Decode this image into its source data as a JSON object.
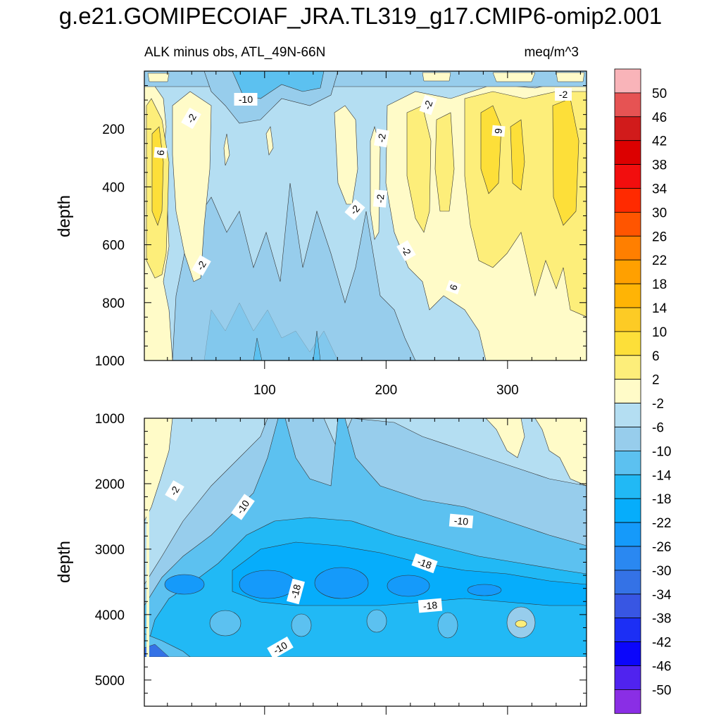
{
  "figure": {
    "title": "g.e21.GOMIPECOIAF_JRA.TL319_g17.CMIP6-omip2.001",
    "subtitle_left": "ALK minus obs, ATL_49N-66N",
    "subtitle_right": "meq/m^3"
  },
  "chart_data": [
    {
      "type": "heatmap",
      "panel": "upper",
      "ylabel": "depth",
      "xlabel": "",
      "xlim": [
        1,
        365
      ],
      "ylim": [
        1000,
        0
      ],
      "x_ticks": [
        100,
        200,
        300
      ],
      "y_ticks": [
        200,
        400,
        600,
        800,
        1000
      ],
      "y_inverted": true,
      "contour_labels": [
        "-10",
        "-2",
        "6",
        "-2",
        "-2",
        "-2",
        "6",
        "-2",
        "-2",
        "6",
        "-2",
        "-2",
        "-2"
      ],
      "description_values": {
        "surface_band": "-10 to 2",
        "upper_left_column": "2 to 10",
        "right_columns": "2 to 10",
        "interior": "-10 to -2"
      }
    },
    {
      "type": "heatmap",
      "panel": "lower",
      "ylabel": "depth",
      "xlabel": "",
      "xlim": [
        1,
        365
      ],
      "ylim": [
        5400,
        1000
      ],
      "y_ticks": [
        1000,
        2000,
        3000,
        4000,
        5000
      ],
      "y_inverted": true,
      "data_max_depth": 4620,
      "contour_labels": [
        "-2",
        "-10",
        "-10",
        "-18",
        "-18",
        "-18",
        "-10"
      ],
      "description_values": {
        "upper_layer": "-10 to -2",
        "core_3500m": "-26 to -18",
        "deep_layer": "-14 to -10"
      }
    }
  ],
  "colorbar": {
    "levels": [
      "50",
      "46",
      "42",
      "38",
      "34",
      "30",
      "26",
      "22",
      "18",
      "14",
      "10",
      "6",
      "2",
      "-2",
      "-6",
      "-10",
      "-14",
      "-18",
      "-22",
      "-26",
      "-30",
      "-34",
      "-38",
      "-42",
      "-46",
      "-50"
    ],
    "colors": [
      "#f9b4b9",
      "#e65353",
      "#d11b1b",
      "#dc0000",
      "#f20e0e",
      "#ff2a00",
      "#ff5500",
      "#ff7f00",
      "#ffa000",
      "#ffb405",
      "#fdcb25",
      "#fddf39",
      "#fdee7a",
      "#fffbc8",
      "#b4def2",
      "#97cdec",
      "#5cc1f0",
      "#21b9f5",
      "#06adfb",
      "#159afa",
      "#2a88f1",
      "#3472e6",
      "#3856e3",
      "#1c2ff5",
      "#0b06fb",
      "#5023ef",
      "#8a2ee5"
    ]
  }
}
